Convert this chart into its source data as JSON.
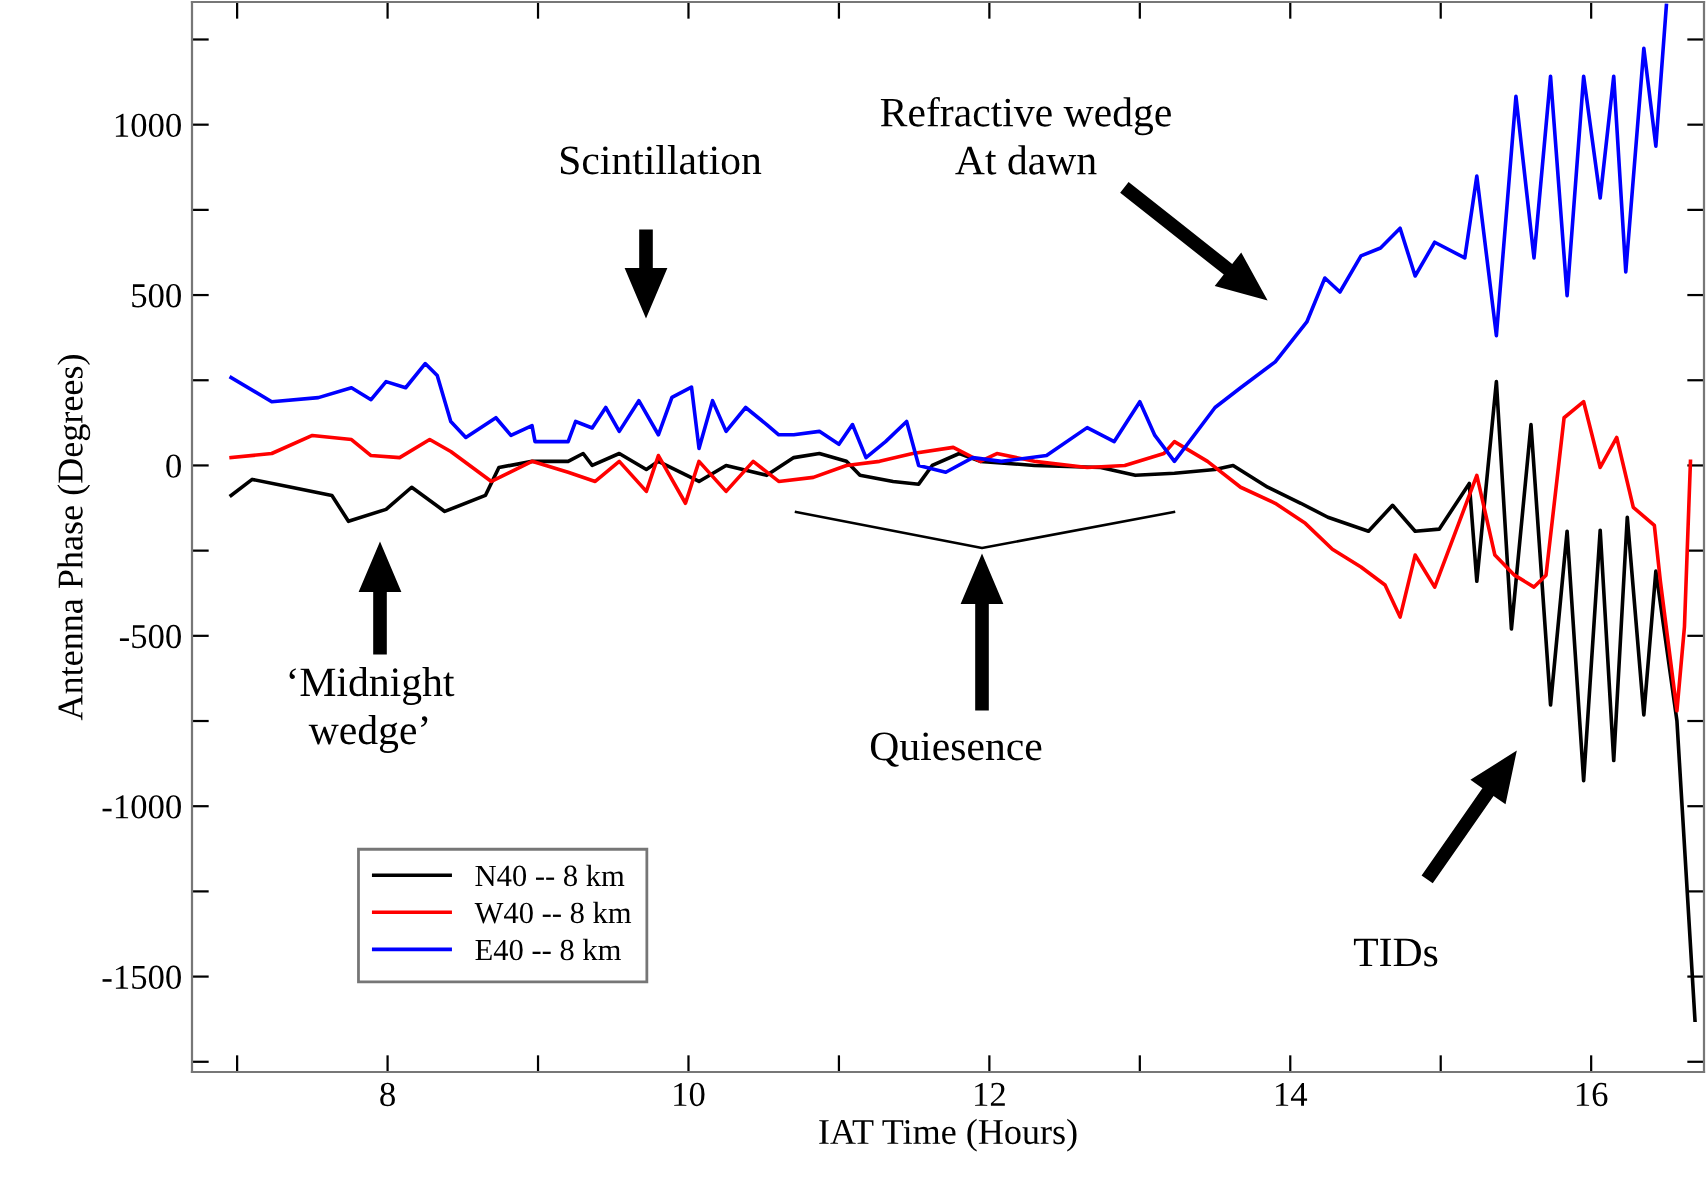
{
  "chart_data": {
    "type": "line",
    "xlabel": "IAT Time (Hours)",
    "ylabel": "Antenna Phase (Degrees)",
    "xlim": [
      6.7,
      16.75
    ],
    "ylim": [
      -1780,
      1360
    ],
    "xticks": [
      {
        "value": 7,
        "label": null
      },
      8,
      {
        "value": 9,
        "label": null
      },
      10,
      {
        "value": 11,
        "label": null
      },
      12,
      {
        "value": 13,
        "label": null
      },
      14,
      {
        "value": 15,
        "label": null
      },
      16
    ],
    "yticks": [
      {
        "value": -1750,
        "label": null
      },
      -1500,
      {
        "value": -1250,
        "label": null
      },
      -1000,
      {
        "value": -750,
        "label": null
      },
      -500,
      {
        "value": -250,
        "label": null
      },
      0,
      {
        "value": 250,
        "label": null
      },
      500,
      {
        "value": 750,
        "label": null
      },
      1000,
      {
        "value": 1250,
        "label": null
      }
    ],
    "grid": false,
    "legend": "bottom left",
    "line_style": "solid",
    "marker": "none",
    "series": [
      {
        "name": "N40 -- 8 km",
        "color": "#000000",
        "x": [
          6.96,
          7.1,
          7.36,
          7.63,
          7.74,
          7.99,
          8.16,
          8.38,
          8.65,
          8.74,
          8.96,
          9.2,
          9.3,
          9.36,
          9.54,
          9.72,
          9.8,
          10.07,
          10.25,
          10.52,
          10.7,
          10.87,
          11.05,
          11.14,
          11.36,
          11.53,
          11.62,
          11.8,
          11.94,
          12.3,
          12.74,
          12.97,
          13.23,
          13.5,
          13.62,
          13.85,
          14.07,
          14.25,
          14.52,
          14.68,
          14.83,
          14.99,
          15.19,
          15.24,
          15.37,
          15.47,
          15.6,
          15.73,
          15.84,
          15.95,
          16.06,
          16.15,
          16.24,
          16.35,
          16.43,
          16.57,
          16.69
        ],
        "values": [
          -88,
          -41,
          -64,
          -88,
          -164,
          -129,
          -64,
          -135,
          -88,
          -6,
          12,
          12,
          35,
          0,
          35,
          -12,
          12,
          -47,
          0,
          -29,
          23,
          35,
          12,
          -29,
          -47,
          -55,
          0,
          35,
          12,
          0,
          -6,
          -29,
          -23,
          -12,
          0,
          -64,
          -111,
          -152,
          -193,
          -117,
          -193,
          -187,
          -53,
          -340,
          246,
          -480,
          120,
          -703,
          -193,
          -925,
          -190,
          -866,
          -152,
          -732,
          -310,
          -749,
          -1628
        ]
      },
      {
        "name": "W40 -- 8 km",
        "color": "#ff0000",
        "x": [
          6.96,
          7.23,
          7.5,
          7.76,
          7.89,
          8.08,
          8.28,
          8.42,
          8.69,
          8.96,
          9.2,
          9.38,
          9.54,
          9.72,
          9.8,
          9.98,
          10.07,
          10.25,
          10.43,
          10.6,
          10.83,
          11.05,
          11.27,
          11.49,
          11.76,
          11.94,
          12.05,
          12.3,
          12.65,
          12.9,
          13.16,
          13.23,
          13.45,
          13.67,
          13.9,
          14.1,
          14.28,
          14.47,
          14.63,
          14.73,
          14.83,
          14.96,
          15.24,
          15.36,
          15.49,
          15.62,
          15.7,
          15.82,
          15.95,
          16.06,
          16.17,
          16.28,
          16.42,
          16.46,
          16.57,
          16.62,
          16.66
        ],
        "values": [
          23,
          35,
          88,
          76,
          29,
          23,
          76,
          41,
          -47,
          12,
          -20,
          -47,
          12,
          -76,
          29,
          -111,
          12,
          -76,
          12,
          -47,
          -35,
          0,
          12,
          35,
          53,
          12,
          35,
          12,
          -6,
          0,
          35,
          70,
          12,
          -64,
          -111,
          -170,
          -246,
          -298,
          -351,
          -445,
          -263,
          -357,
          -29,
          -263,
          -322,
          -357,
          -322,
          140,
          187,
          -6,
          82,
          -123,
          -176,
          -340,
          -720,
          -474,
          12
        ]
      },
      {
        "name": "E40 -- 8 km",
        "color": "#0000ff",
        "x": [
          6.96,
          7.23,
          7.54,
          7.76,
          7.89,
          7.99,
          8.12,
          8.25,
          8.33,
          8.42,
          8.52,
          8.72,
          8.82,
          8.96,
          8.98,
          9.2,
          9.25,
          9.36,
          9.45,
          9.54,
          9.67,
          9.8,
          9.89,
          10.02,
          10.07,
          10.16,
          10.25,
          10.38,
          10.52,
          10.6,
          10.7,
          10.87,
          11.0,
          11.09,
          11.18,
          11.31,
          11.45,
          11.53,
          11.71,
          11.89,
          12.08,
          12.38,
          12.65,
          12.83,
          13.0,
          13.1,
          13.23,
          13.5,
          13.67,
          13.9,
          14.11,
          14.23,
          14.33,
          14.47,
          14.6,
          14.73,
          14.83,
          14.96,
          15.16,
          15.24,
          15.37,
          15.5,
          15.62,
          15.73,
          15.84,
          15.95,
          16.06,
          16.15,
          16.23,
          16.35,
          16.43,
          16.5
        ],
        "values": [
          258,
          187,
          199,
          228,
          193,
          246,
          228,
          299,
          264,
          129,
          82,
          140,
          88,
          117,
          70,
          70,
          129,
          110,
          170,
          100,
          190,
          90,
          200,
          230,
          50,
          190,
          100,
          170,
          120,
          90,
          90,
          100,
          62,
          120,
          23,
          70,
          129,
          0,
          -20,
          23,
          12,
          29,
          111,
          70,
          187,
          88,
          12,
          170,
          228,
          304,
          421,
          550,
          509,
          615,
          638,
          696,
          556,
          655,
          609,
          849,
          381,
          1083,
          609,
          1142,
          498,
          1142,
          785,
          1142,
          568,
          1224,
          937,
          1350
        ]
      }
    ],
    "annotations": [
      "Scintillation",
      "Refractive wedge\nAt dawn",
      "‘Midnight\nwedge’",
      "Quiesence",
      "TIDs"
    ]
  }
}
